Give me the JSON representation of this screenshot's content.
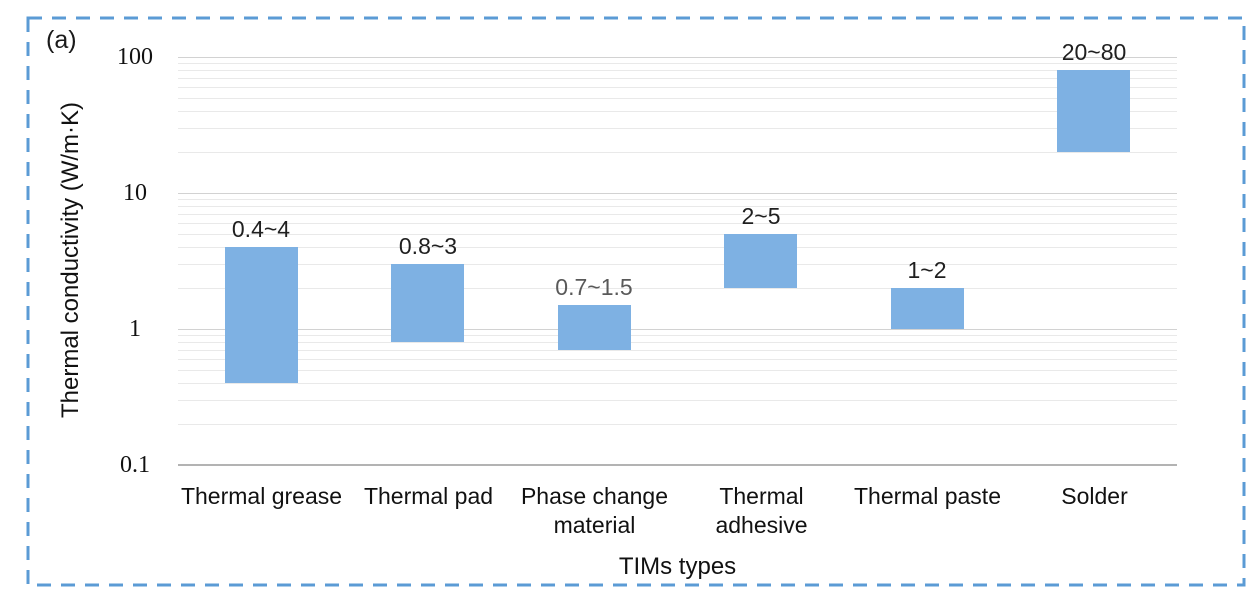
{
  "figure": {
    "panel_label": "(a)",
    "border_color": "#5b9bd5"
  },
  "chart_data": {
    "type": "bar",
    "subtype": "floating-range-column",
    "title": "",
    "xlabel": "TIMs types",
    "ylabel": "Thermal conductivity (W/m·K)",
    "yscale": "log",
    "ylim": [
      0.1,
      100
    ],
    "ytick_values": [
      100,
      10,
      1,
      0.1
    ],
    "ytick_labels": [
      "100",
      "10",
      "1",
      "0.1"
    ],
    "grid": "minor-and-major-horizontal",
    "legend": "none",
    "bar_color": "#7eb1e3",
    "categories": [
      "Thermal grease",
      "Thermal pad",
      "Phase change\nmaterial",
      "Thermal\nadhesive",
      "Thermal paste",
      "Solder"
    ],
    "series": [
      {
        "name": "Thermal conductivity range (W/m·K)",
        "ranges": [
          {
            "low": 0.4,
            "high": 4,
            "label": "0.4~4",
            "label_color": "#1f1f1f"
          },
          {
            "low": 0.8,
            "high": 3,
            "label": "0.8~3",
            "label_color": "#1f1f1f"
          },
          {
            "low": 0.7,
            "high": 1.5,
            "label": "0.7~1.5",
            "label_color": "#595959"
          },
          {
            "low": 2,
            "high": 5,
            "label": "2~5",
            "label_color": "#1f1f1f"
          },
          {
            "low": 1,
            "high": 2,
            "label": "1~2",
            "label_color": "#1f1f1f"
          },
          {
            "low": 20,
            "high": 80,
            "label": "20~80",
            "label_color": "#1f1f1f"
          }
        ]
      }
    ]
  }
}
